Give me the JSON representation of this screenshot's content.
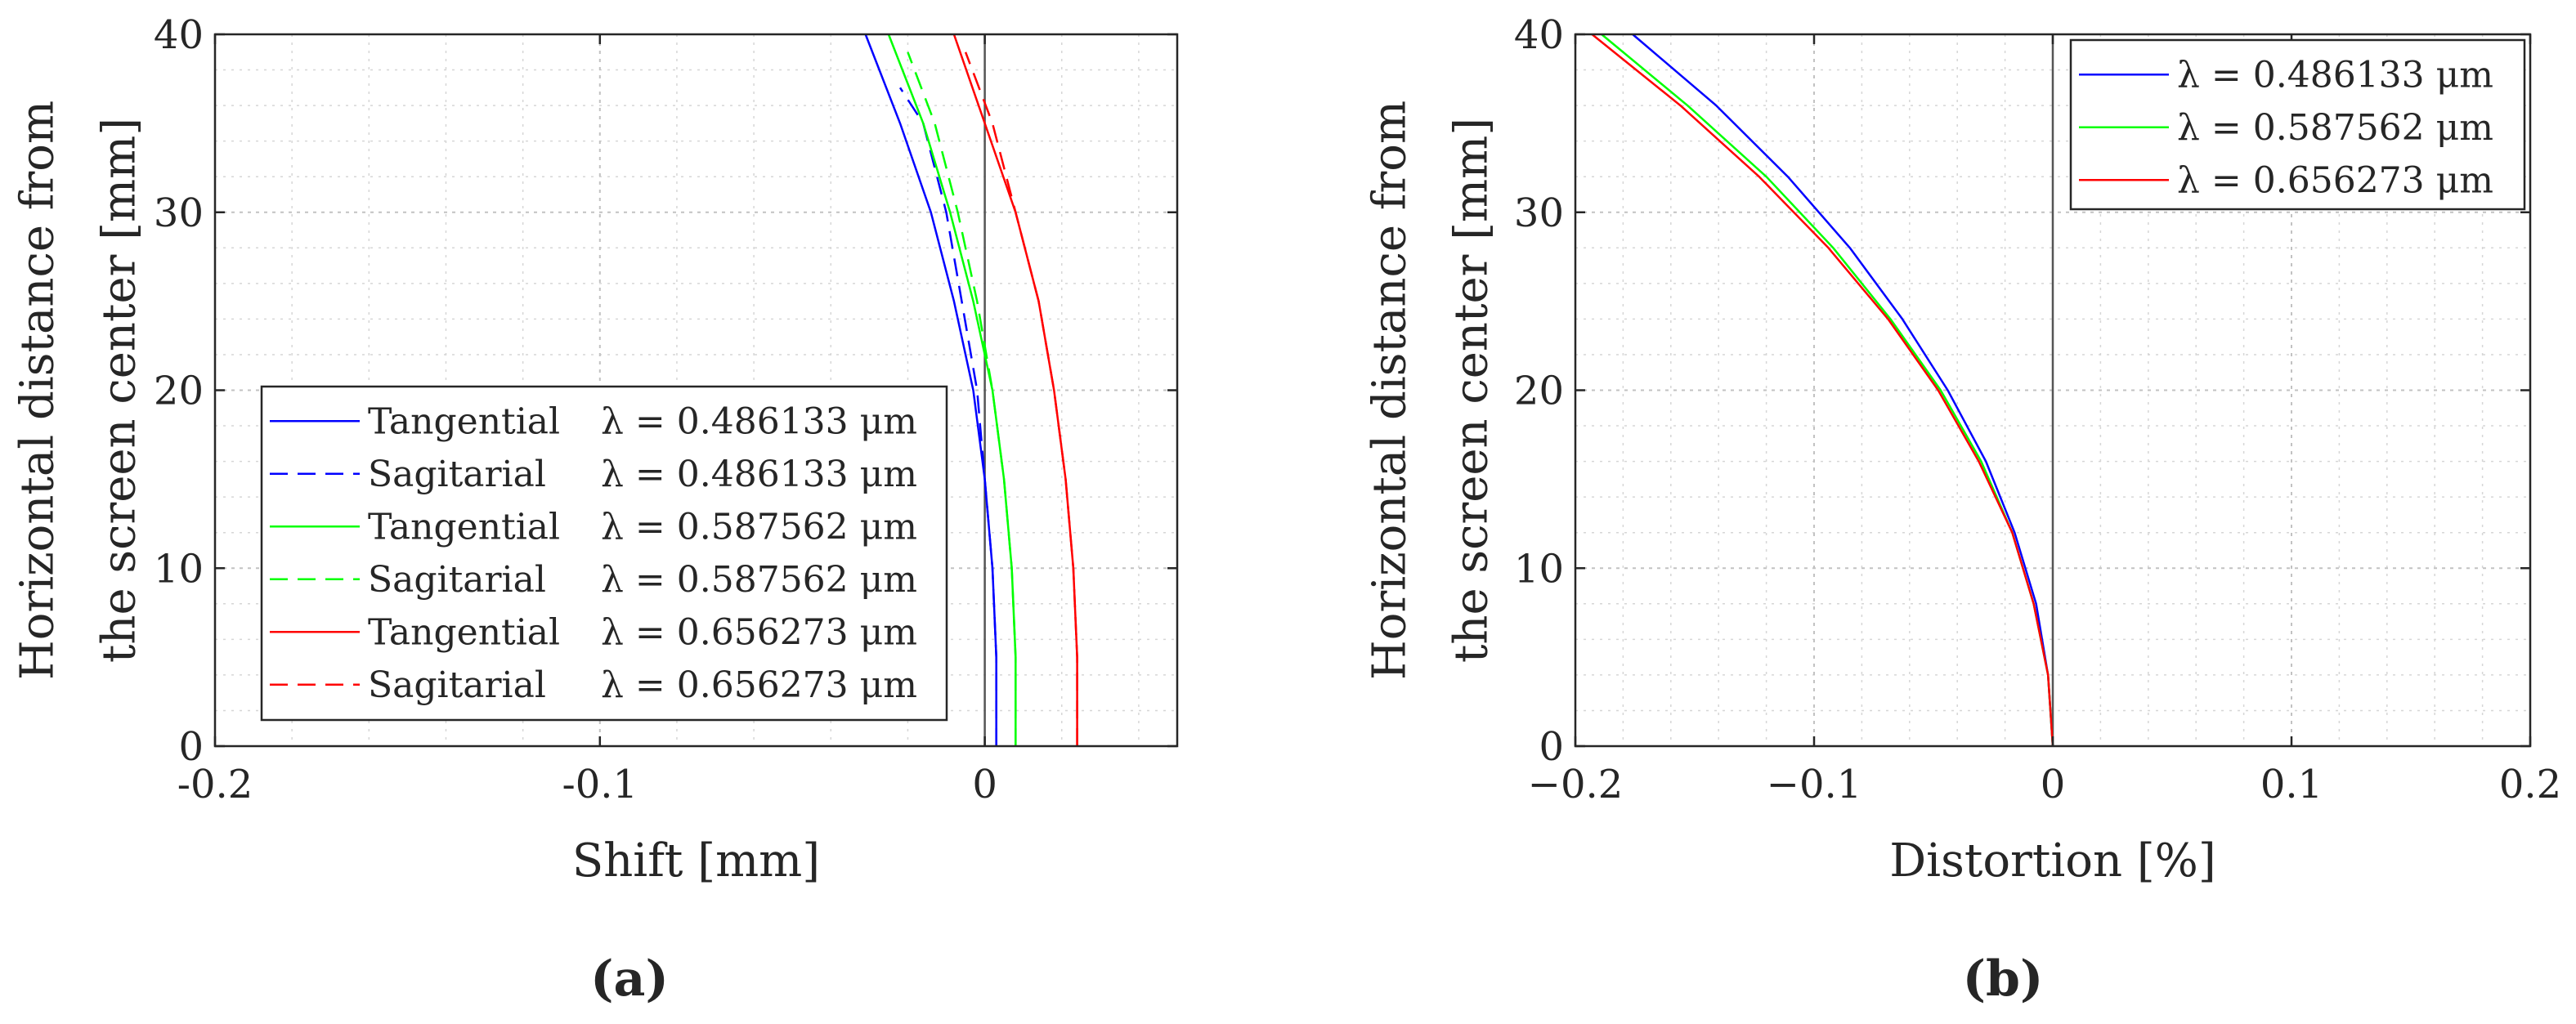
{
  "chart_data": [
    {
      "type": "line",
      "panel_label": "(a)",
      "xlabel": "Shift [mm]",
      "ylabel_lines": [
        "Horizontal distance from",
        "the screen center [mm]"
      ],
      "xlim": [
        -0.2,
        0.05
      ],
      "ylim": [
        0,
        40
      ],
      "xticks": [
        -0.2,
        -0.1,
        0
      ],
      "xtick_labels": [
        "-0.2",
        "-0.1",
        "0"
      ],
      "yticks": [
        0,
        10,
        20,
        30,
        40
      ],
      "ytick_labels": [
        "0",
        "10",
        "20",
        "30",
        "40"
      ],
      "grid": true,
      "minor_grid": true,
      "reference_line_x": 0,
      "legend_location": "lower-left",
      "series": [
        {
          "name": "Tangential",
          "lambda": "λ = 0.486133 μm",
          "label": "Tangential λ = 0.486133 μm",
          "color": "#0000ff",
          "dash": "solid",
          "x": [
            0.003,
            0.003,
            0.002,
            0.0,
            -0.003,
            -0.008,
            -0.014,
            -0.022,
            -0.031
          ],
          "y": [
            0,
            5,
            10,
            15,
            20,
            25,
            30,
            35,
            40
          ]
        },
        {
          "name": "Sagitarial",
          "lambda": "λ = 0.486133 μm",
          "label": "Sagitarial   λ = 0.486133 μm",
          "color": "#0000ff",
          "dash": "dashed",
          "x": [
            0.003,
            0.003,
            0.002,
            0.0,
            -0.002,
            -0.006,
            -0.01,
            -0.016,
            -0.022
          ],
          "y": [
            0,
            5,
            10,
            15,
            20,
            25,
            30,
            35,
            37
          ]
        },
        {
          "name": "Tangential",
          "lambda": "λ = 0.587562 μm",
          "label": "Tangential λ = 0.587562 μm",
          "color": "#00ff00",
          "dash": "solid",
          "x": [
            0.008,
            0.008,
            0.007,
            0.005,
            0.002,
            -0.003,
            -0.009,
            -0.016,
            -0.025
          ],
          "y": [
            0,
            5,
            10,
            15,
            20,
            25,
            30,
            35,
            40
          ]
        },
        {
          "name": "Sagitarial",
          "lambda": "λ = 0.587562 μm",
          "label": "Sagitarial   λ = 0.587562 μm",
          "color": "#00ff00",
          "dash": "dashed",
          "x": [
            0.008,
            0.008,
            0.007,
            0.005,
            0.002,
            -0.002,
            -0.007,
            -0.013,
            -0.02
          ],
          "y": [
            0,
            5,
            10,
            15,
            20,
            25,
            30,
            35,
            39
          ]
        },
        {
          "name": "Tangential",
          "lambda": "λ = 0.656273 μm",
          "label": "Tangential λ = 0.656273 μm",
          "color": "#ff0000",
          "dash": "solid",
          "x": [
            0.024,
            0.024,
            0.023,
            0.021,
            0.018,
            0.014,
            0.008,
            0.0,
            -0.008
          ],
          "y": [
            0,
            5,
            10,
            15,
            20,
            25,
            30,
            35,
            40
          ]
        },
        {
          "name": "Sagitarial",
          "lambda": "λ = 0.656273 μm",
          "label": "Sagitarial   λ = 0.656273 μm",
          "color": "#ff0000",
          "dash": "dashed",
          "x": [
            0.024,
            0.024,
            0.023,
            0.021,
            0.018,
            0.014,
            0.008,
            0.002,
            -0.005
          ],
          "y": [
            0,
            5,
            10,
            15,
            20,
            25,
            30,
            35,
            39
          ]
        }
      ]
    },
    {
      "type": "line",
      "panel_label": "(b)",
      "xlabel": "Distortion [%]",
      "ylabel_lines": [
        "Horizontal distance from",
        "the screen center [mm]"
      ],
      "xlim": [
        -0.2,
        0.2
      ],
      "ylim": [
        0,
        40
      ],
      "xticks": [
        -0.2,
        -0.1,
        0,
        0.1,
        0.2
      ],
      "xtick_labels": [
        "−0.2",
        "−0.1",
        "0",
        "0.1",
        "0.2"
      ],
      "yticks": [
        0,
        10,
        20,
        30,
        40
      ],
      "ytick_labels": [
        "0",
        "10",
        "20",
        "30",
        "40"
      ],
      "grid": true,
      "minor_grid": true,
      "reference_line_x": 0,
      "legend_location": "top-right",
      "series": [
        {
          "name": "λ = 0.486133 μm",
          "label": "λ = 0.486133 μm",
          "color": "#0000ff",
          "dash": "solid",
          "x": [
            0,
            -0.002,
            -0.007,
            -0.016,
            -0.028,
            -0.044,
            -0.063,
            -0.085,
            -0.111,
            -0.141,
            -0.176
          ],
          "y": [
            0,
            4,
            8,
            12,
            16,
            20,
            24,
            28,
            32,
            36,
            40
          ]
        },
        {
          "name": "λ = 0.587562 μm",
          "label": "λ = 0.587562 μm",
          "color": "#00ff00",
          "dash": "solid",
          "x": [
            0,
            -0.002,
            -0.008,
            -0.017,
            -0.03,
            -0.047,
            -0.068,
            -0.092,
            -0.12,
            -0.153,
            -0.189
          ],
          "y": [
            0,
            4,
            8,
            12,
            16,
            20,
            24,
            28,
            32,
            36,
            40
          ]
        },
        {
          "name": "λ = 0.656273 μm",
          "label": "λ = 0.656273 μm",
          "color": "#ff0000",
          "dash": "solid",
          "x": [
            0,
            -0.002,
            -0.008,
            -0.017,
            -0.031,
            -0.048,
            -0.069,
            -0.094,
            -0.123,
            -0.156,
            -0.193
          ],
          "y": [
            0,
            4,
            8,
            12,
            16,
            20,
            24,
            28,
            32,
            36,
            40
          ]
        }
      ]
    }
  ]
}
